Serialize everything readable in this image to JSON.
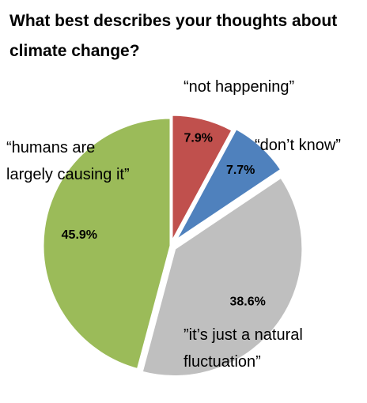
{
  "chart_data": {
    "type": "pie",
    "title": "What best describes your thoughts about climate change?",
    "categories": [
      "“not happening”",
      "“don’t know”",
      "”it’s just a natural fluctuation”",
      "“humans are largely causing it”"
    ],
    "values": [
      7.9,
      7.7,
      38.6,
      45.9
    ],
    "value_labels": [
      "7.9%",
      "7.7%",
      "38.6%",
      "45.9%"
    ],
    "label_lines": [
      [
        "“not happening”"
      ],
      [
        "“don’t know”"
      ],
      [
        "”it’s just a natural",
        "fluctuation”"
      ],
      [
        "“humans are",
        "largely causing it”"
      ]
    ],
    "colors": [
      "#c0504d",
      "#4f81bd",
      "#bfbfbf",
      "#9bbb59"
    ],
    "exploded": true,
    "legend": "none"
  }
}
